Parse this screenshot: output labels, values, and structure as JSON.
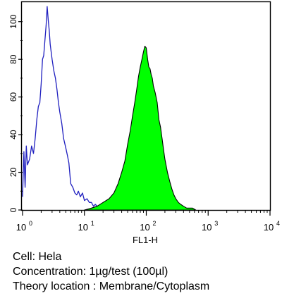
{
  "chart_data": {
    "type": "area",
    "title": "",
    "xlabel": "FL1-H",
    "ylabel": "",
    "x_scale": "log",
    "xlim": [
      1,
      10000
    ],
    "ylim": [
      0,
      110
    ],
    "x_ticks": [
      {
        "value": 1,
        "base": "10",
        "exp": "0"
      },
      {
        "value": 10,
        "base": "10",
        "exp": "1"
      },
      {
        "value": 100,
        "base": "10",
        "exp": "2"
      },
      {
        "value": 1000,
        "base": "10",
        "exp": "3"
      },
      {
        "value": 10000,
        "base": "10",
        "exp": "4"
      }
    ],
    "y_ticks": [
      "0",
      "20",
      "40",
      "60",
      "80",
      "100"
    ],
    "grid": false,
    "series": [
      {
        "kind": "line",
        "color": "#1f1fbf",
        "x": [
          1.0,
          1.05,
          1.1,
          1.15,
          1.2,
          1.3,
          1.4,
          1.5,
          1.6,
          1.7,
          1.8,
          1.9,
          2.0,
          2.1,
          2.2,
          2.3,
          2.4,
          2.5,
          2.6,
          2.7,
          2.8,
          3.0,
          3.2,
          3.4,
          3.6,
          3.8,
          4.0,
          4.3,
          4.6,
          5.0,
          5.3,
          5.6,
          6.0,
          6.5,
          7.0,
          7.5,
          8.0,
          8.6,
          9.3,
          10.0,
          11.0,
          12.0,
          13.0,
          14.0,
          15.0,
          16.0,
          17.0,
          18.0,
          19.0,
          20.0
        ],
        "values": [
          7,
          31,
          12,
          34,
          24,
          27,
          34,
          30,
          38,
          48,
          55,
          57,
          67,
          80,
          82,
          90,
          98,
          108,
          101,
          95,
          88,
          80,
          74,
          70,
          64,
          57,
          52,
          46,
          38,
          33,
          29,
          25,
          14,
          12,
          9,
          8,
          10,
          7,
          9,
          5,
          6,
          4,
          4,
          2,
          3,
          2,
          1,
          2,
          1,
          0
        ]
      },
      {
        "kind": "area",
        "color": "#00ff00",
        "x": [
          10.0,
          13.0,
          16.0,
          20.0,
          25.0,
          30.0,
          35.0,
          40.0,
          45.0,
          50.0,
          55.0,
          60.0,
          65.0,
          70.0,
          75.0,
          80.0,
          85.0,
          90.0,
          95.0,
          100.0,
          105.0,
          110.0,
          115.0,
          120.0,
          125.0,
          130.0,
          140.0,
          150.0,
          160.0,
          170.0,
          180.0,
          190.0,
          200.0,
          220.0,
          240.0,
          260.0,
          280.0,
          300.0,
          330.0,
          360.0,
          400.0,
          450.0,
          500.0,
          560.0,
          630.0
        ],
        "values": [
          0,
          1,
          2,
          4,
          6,
          9,
          14,
          20,
          26,
          35,
          42,
          50,
          57,
          64,
          71,
          76,
          80,
          84,
          87,
          86,
          80,
          76,
          75,
          72,
          70,
          66,
          62,
          57,
          48,
          44,
          38,
          32,
          27,
          20,
          15,
          11,
          8,
          6,
          4,
          3,
          2,
          1,
          1,
          1,
          0
        ]
      }
    ]
  },
  "caption": {
    "cell": "Cell: Hela",
    "concentration": "Concentration: 1µg/test (100µl)",
    "location": "Theory location : Membrane/Cytoplasm"
  }
}
